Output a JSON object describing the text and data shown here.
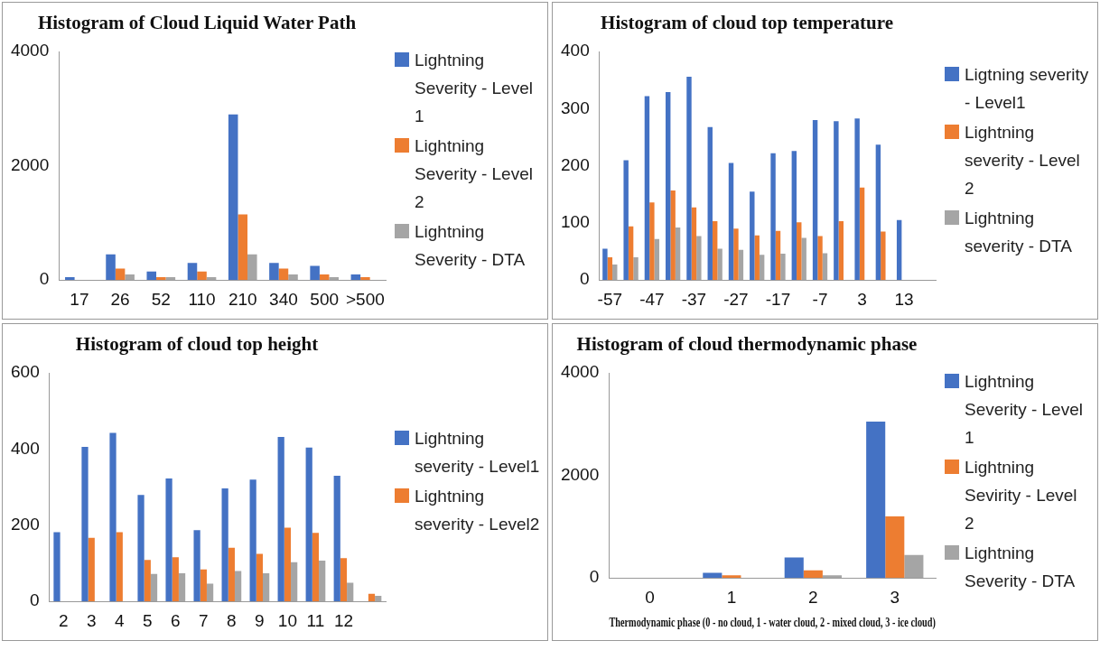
{
  "chart_data": [
    {
      "type": "bar",
      "title": "Histogram of Cloud Liquid Water Path",
      "categories": [
        "17",
        "26",
        "52",
        "110",
        "210",
        "340",
        "500",
        ">500"
      ],
      "ylim": [
        0,
        4000
      ],
      "yticks": [
        0,
        2000,
        4000
      ],
      "grid": false,
      "legend": "right",
      "series": [
        {
          "name": "Lightning Severity - Level 1",
          "color": "#4472c4",
          "values": [
            50,
            450,
            150,
            300,
            2900,
            300,
            250,
            100
          ]
        },
        {
          "name": "Lightning Severity - Level 2",
          "color": "#ed7d31",
          "values": [
            null,
            200,
            50,
            150,
            1150,
            200,
            100,
            50
          ]
        },
        {
          "name": "Lightning Severity - DTA",
          "color": "#a5a5a5",
          "values": [
            null,
            100,
            50,
            50,
            450,
            100,
            50,
            null
          ]
        }
      ]
    },
    {
      "type": "bar",
      "title": "Histogram of cloud top temperature",
      "categories": [
        "-57",
        null,
        "-47",
        null,
        "-37",
        null,
        "-27",
        null,
        "-17",
        null,
        "-7",
        null,
        "3",
        null,
        "13",
        null
      ],
      "ylim": [
        0,
        400
      ],
      "yticks": [
        0,
        100,
        200,
        300,
        400
      ],
      "grid": false,
      "legend": "right",
      "series": [
        {
          "name": "Ligtning severity - Level1",
          "color": "#4472c4",
          "values": [
            55,
            210,
            322,
            329,
            356,
            268,
            205,
            155,
            222,
            226,
            280,
            278,
            283,
            237,
            105,
            null
          ]
        },
        {
          "name": "Lightning severity - Level 2",
          "color": "#ed7d31",
          "values": [
            40,
            94,
            136,
            157,
            127,
            103,
            90,
            78,
            86,
            101,
            77,
            103,
            162,
            85,
            null,
            null
          ]
        },
        {
          "name": "Lightning severity - DTA",
          "color": "#a5a5a5",
          "values": [
            27,
            40,
            72,
            92,
            77,
            55,
            53,
            44,
            46,
            74,
            47,
            null,
            null,
            null,
            null,
            null
          ]
        }
      ]
    },
    {
      "type": "bar",
      "title": "Histogram of cloud top height",
      "categories": [
        "2",
        "3",
        "4",
        "5",
        "6",
        "7",
        "8",
        "9",
        "10",
        "11",
        "12",
        null
      ],
      "ylim": [
        0,
        600
      ],
      "yticks": [
        0,
        200,
        400,
        600
      ],
      "grid": false,
      "legend": "right",
      "series": [
        {
          "name": "Lightning severity - Level1",
          "color": "#4472c4",
          "values": [
            182,
            406,
            443,
            280,
            323,
            187,
            297,
            320,
            432,
            404,
            330,
            null
          ]
        },
        {
          "name": "Lightning severity - Level2",
          "color": "#ed7d31",
          "values": [
            null,
            167,
            182,
            109,
            116,
            84,
            141,
            125,
            194,
            180,
            114,
            20
          ]
        },
        {
          "color": "#a5a5a5",
          "values": [
            null,
            null,
            null,
            72,
            74,
            47,
            80,
            74,
            103,
            107,
            49,
            15
          ]
        }
      ]
    },
    {
      "type": "bar",
      "title": "Histogram of cloud thermodynamic phase",
      "xlabel": "Thermodynamic phase (0 - no cloud, 1 - water cloud, 2 - mixed cloud, 3 - ice cloud)",
      "categories": [
        "0",
        "1",
        "2",
        "3"
      ],
      "ylim": [
        0,
        4000
      ],
      "yticks": [
        0,
        2000,
        4000
      ],
      "grid": false,
      "legend": "right",
      "series": [
        {
          "name": "Lightning Severity - Level 1",
          "color": "#4472c4",
          "values": [
            null,
            100,
            400,
            3050
          ]
        },
        {
          "name": "Lightning Sevirity - Level 2",
          "color": "#ed7d31",
          "values": [
            null,
            50,
            150,
            1200
          ]
        },
        {
          "name": "Lightning Severity - DTA",
          "color": "#a5a5a5",
          "values": [
            null,
            null,
            50,
            450
          ]
        }
      ]
    }
  ]
}
